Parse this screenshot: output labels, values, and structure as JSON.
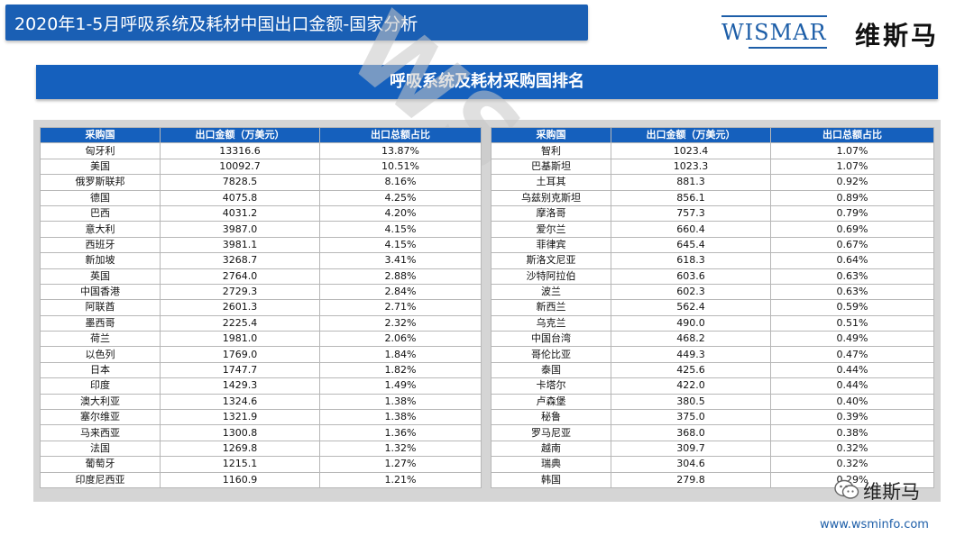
{
  "header": {
    "title": "2020年1-5月呼吸系统及耗材中国出口金额-国家分析"
  },
  "logo": {
    "en": "WISMAR",
    "cn": "维斯马"
  },
  "section": {
    "title": "呼吸系统及耗材采购国排名"
  },
  "watermark": "WSMINFO",
  "columns": [
    "采购国",
    "出口金额（万美元）",
    "出口总额占比"
  ],
  "left_rows": [
    [
      "匈牙利",
      "13316.6",
      "13.87%"
    ],
    [
      "美国",
      "10092.7",
      "10.51%"
    ],
    [
      "俄罗斯联邦",
      "7828.5",
      "8.16%"
    ],
    [
      "德国",
      "4075.8",
      "4.25%"
    ],
    [
      "巴西",
      "4031.2",
      "4.20%"
    ],
    [
      "意大利",
      "3987.0",
      "4.15%"
    ],
    [
      "西班牙",
      "3981.1",
      "4.15%"
    ],
    [
      "新加坡",
      "3268.7",
      "3.41%"
    ],
    [
      "英国",
      "2764.0",
      "2.88%"
    ],
    [
      "中国香港",
      "2729.3",
      "2.84%"
    ],
    [
      "阿联酋",
      "2601.3",
      "2.71%"
    ],
    [
      "墨西哥",
      "2225.4",
      "2.32%"
    ],
    [
      "荷兰",
      "1981.0",
      "2.06%"
    ],
    [
      "以色列",
      "1769.0",
      "1.84%"
    ],
    [
      "日本",
      "1747.7",
      "1.82%"
    ],
    [
      "印度",
      "1429.3",
      "1.49%"
    ],
    [
      "澳大利亚",
      "1324.6",
      "1.38%"
    ],
    [
      "塞尔维亚",
      "1321.9",
      "1.38%"
    ],
    [
      "马来西亚",
      "1300.8",
      "1.36%"
    ],
    [
      "法国",
      "1269.8",
      "1.32%"
    ],
    [
      "葡萄牙",
      "1215.1",
      "1.27%"
    ],
    [
      "印度尼西亚",
      "1160.9",
      "1.21%"
    ]
  ],
  "right_rows": [
    [
      "智利",
      "1023.4",
      "1.07%"
    ],
    [
      "巴基斯坦",
      "1023.3",
      "1.07%"
    ],
    [
      "土耳其",
      "881.3",
      "0.92%"
    ],
    [
      "乌兹别克斯坦",
      "856.1",
      "0.89%"
    ],
    [
      "摩洛哥",
      "757.3",
      "0.79%"
    ],
    [
      "爱尔兰",
      "660.4",
      "0.69%"
    ],
    [
      "菲律宾",
      "645.4",
      "0.67%"
    ],
    [
      "斯洛文尼亚",
      "618.3",
      "0.64%"
    ],
    [
      "沙特阿拉伯",
      "603.6",
      "0.63%"
    ],
    [
      "波兰",
      "602.3",
      "0.63%"
    ],
    [
      "新西兰",
      "562.4",
      "0.59%"
    ],
    [
      "乌克兰",
      "490.0",
      "0.51%"
    ],
    [
      "中国台湾",
      "468.2",
      "0.49%"
    ],
    [
      "哥伦比亚",
      "449.3",
      "0.47%"
    ],
    [
      "泰国",
      "425.6",
      "0.44%"
    ],
    [
      "卡塔尔",
      "422.0",
      "0.44%"
    ],
    [
      "卢森堡",
      "380.5",
      "0.40%"
    ],
    [
      "秘鲁",
      "375.0",
      "0.39%"
    ],
    [
      "罗马尼亚",
      "368.0",
      "0.38%"
    ],
    [
      "越南",
      "309.7",
      "0.32%"
    ],
    [
      "瑞典",
      "304.6",
      "0.32%"
    ],
    [
      "韩国",
      "279.8",
      "0.29%"
    ]
  ],
  "wechat": {
    "name": "维斯马"
  },
  "footer": {
    "url": "www.wsminfo.com"
  },
  "colors": {
    "brand_blue": "#1560bd",
    "panel_gray": "#d5d5d5"
  }
}
